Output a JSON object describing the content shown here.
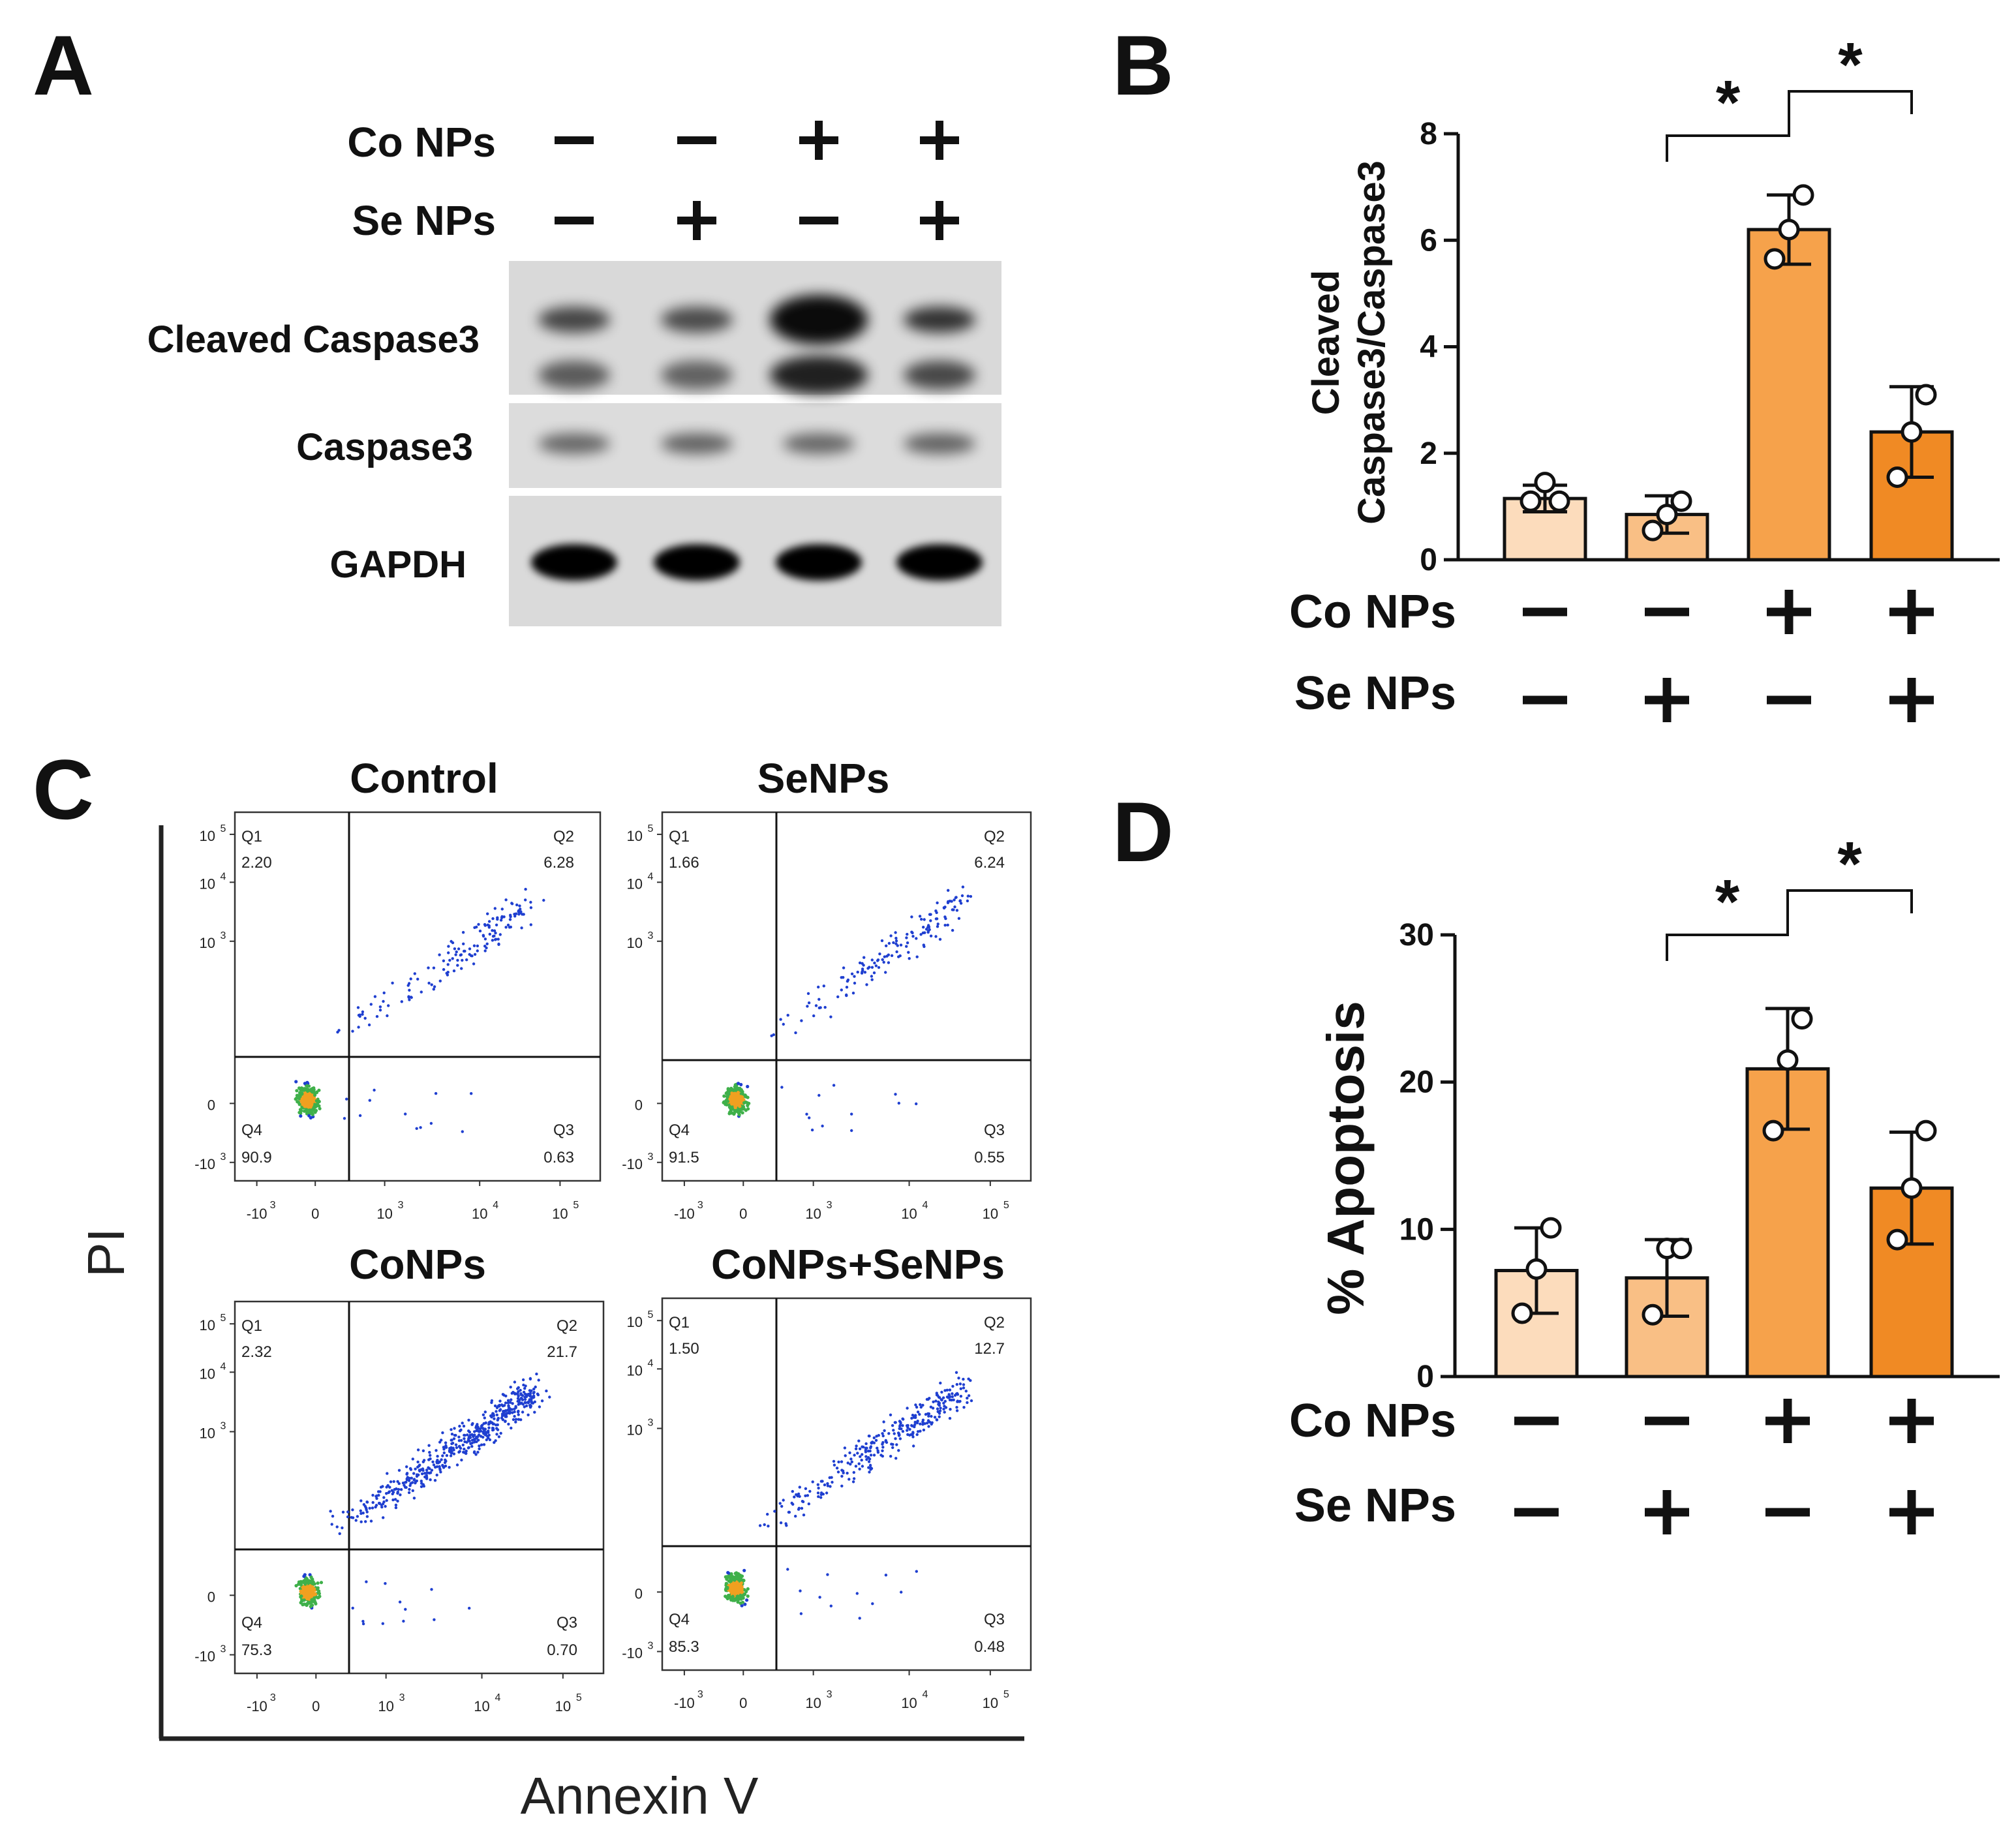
{
  "panel_labels": {
    "a": "A",
    "b": "B",
    "c": "C",
    "d": "D"
  },
  "treatments": {
    "co_label": "Co NPs",
    "se_label": "Se NPs",
    "co": [
      "−",
      "−",
      "+",
      "+"
    ],
    "se": [
      "−",
      "+",
      "−",
      "+"
    ]
  },
  "blot": {
    "rows": [
      "Cleaved Caspase3",
      "Caspase3",
      "GAPDH"
    ],
    "intensity": [
      [
        0.55,
        0.5,
        1.0,
        0.7
      ],
      [
        0.45,
        0.5,
        0.45,
        0.5
      ],
      [
        1.0,
        1.0,
        1.0,
        1.0
      ]
    ]
  },
  "colors": {
    "bar1": "#fcdcbc",
    "bar2": "#f9bf85",
    "bar3": "#f6a24b",
    "bar4": "#f08a24",
    "dot_low": "#1f3fd0",
    "dot_mid": "#3fb04a",
    "dot_hot": "#f0a020"
  },
  "flow": {
    "x_label": "Annexin V",
    "y_label": "PI",
    "x_ticks": [
      "-10",
      "0",
      "10",
      "10",
      "10"
    ],
    "x_ticks_sup": [
      "3",
      "",
      "3",
      "4",
      "5"
    ],
    "y_ticks": [
      "10",
      "10",
      "10",
      "0",
      "-10"
    ],
    "y_ticks_sup": [
      "5",
      "4",
      "3",
      "",
      "3"
    ],
    "plots": [
      {
        "title": "Control",
        "q1": "Q1",
        "q1_val": "2.20",
        "q2": "Q2",
        "q2_val": "6.28",
        "q3": "Q3",
        "q3_val": "0.63",
        "q4": "Q4",
        "q4_val": "90.9"
      },
      {
        "title": "SeNPs",
        "q1": "Q1",
        "q1_val": "1.66",
        "q2": "Q2",
        "q2_val": "6.24",
        "q3": "Q3",
        "q3_val": "0.55",
        "q4": "Q4",
        "q4_val": "91.5"
      },
      {
        "title": "CoNPs",
        "q1": "Q1",
        "q1_val": "2.32",
        "q2": "Q2",
        "q2_val": "21.7",
        "q3": "Q3",
        "q3_val": "0.70",
        "q4": "Q4",
        "q4_val": "75.3"
      },
      {
        "title": "CoNPs+SeNPs",
        "q1": "Q1",
        "q1_val": "1.50",
        "q2": "Q2",
        "q2_val": "12.7",
        "q3": "Q3",
        "q3_val": "0.48",
        "q4": "Q4",
        "q4_val": "85.3"
      }
    ]
  },
  "chart_data": [
    {
      "type": "bar",
      "panel": "B",
      "title": "",
      "ylabel_line1": "Cleaved",
      "ylabel_line2": "Caspase3/Caspase3",
      "ylim": [
        0,
        8
      ],
      "yticks": [
        0,
        2,
        4,
        6,
        8
      ],
      "categories": [
        "Control",
        "Se NPs",
        "Co NPs",
        "Co NPs + Se NPs"
      ],
      "values": [
        1.15,
        0.85,
        6.2,
        2.4
      ],
      "errors": [
        0.25,
        0.35,
        0.65,
        0.85
      ],
      "points": [
        [
          1.1,
          1.45,
          1.1
        ],
        [
          0.55,
          0.85,
          1.1
        ],
        [
          5.65,
          6.2,
          6.85
        ],
        [
          1.55,
          2.4,
          3.1
        ]
      ],
      "significance": [
        {
          "from": 1,
          "to": 2,
          "label": "*"
        },
        {
          "from": 2,
          "to": 3,
          "label": "*"
        }
      ]
    },
    {
      "type": "bar",
      "panel": "D",
      "title": "",
      "ylabel": "% Apoptosis",
      "ylim": [
        0,
        30
      ],
      "yticks": [
        0,
        10,
        20,
        30
      ],
      "categories": [
        "Control",
        "Se NPs",
        "Co NPs",
        "Co NPs + Se NPs"
      ],
      "values": [
        7.2,
        6.7,
        20.9,
        12.8
      ],
      "errors": [
        2.9,
        2.6,
        4.1,
        3.8
      ],
      "points": [
        [
          4.3,
          7.3,
          10.1
        ],
        [
          4.2,
          8.7,
          8.7
        ],
        [
          16.7,
          21.5,
          24.3
        ],
        [
          9.3,
          12.8,
          16.7
        ]
      ],
      "significance": [
        {
          "from": 1,
          "to": 2,
          "label": "*"
        },
        {
          "from": 2,
          "to": 3,
          "label": "*"
        }
      ]
    }
  ]
}
